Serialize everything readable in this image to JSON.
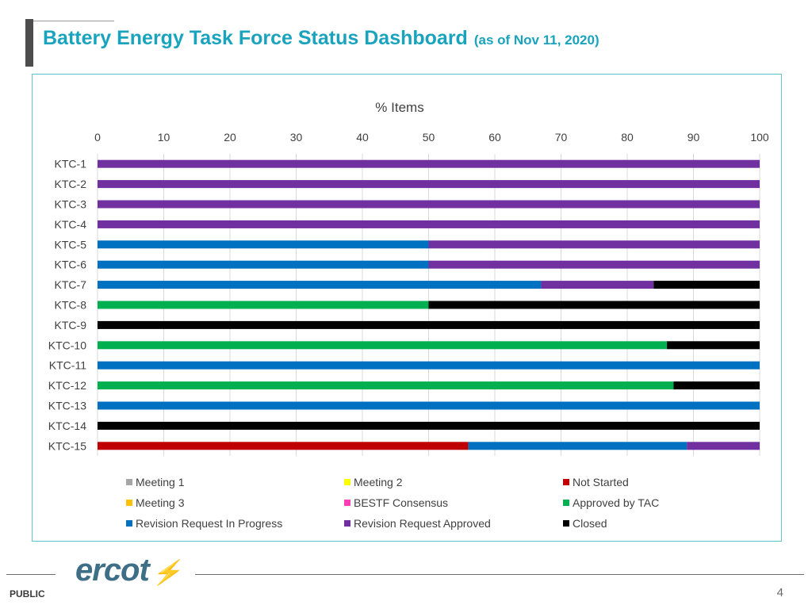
{
  "slide": {
    "title": "Battery Energy Task Force Status Dashboard",
    "subtitle": "(as of Nov 11, 2020)",
    "footer_label": "PUBLIC",
    "page_number": "4",
    "logo_text": "ercot"
  },
  "chart_data": {
    "type": "bar",
    "orientation": "horizontal",
    "stacked": true,
    "title": "% Items",
    "xlim": [
      0,
      100
    ],
    "xticks": [
      "0",
      "10",
      "20",
      "30",
      "40",
      "50",
      "60",
      "70",
      "80",
      "90",
      "100"
    ],
    "categories": [
      "KTC-1",
      "KTC-2",
      "KTC-3",
      "KTC-4",
      "KTC-5",
      "KTC-6",
      "KTC-7",
      "KTC-8",
      "KTC-9",
      "KTC-10",
      "KTC-11",
      "KTC-12",
      "KTC-13",
      "KTC-14",
      "KTC-15"
    ],
    "series": [
      {
        "name": "Meeting 1",
        "color": "#a6a6a6",
        "values": [
          0,
          0,
          0,
          0,
          0,
          0,
          0,
          0,
          0,
          0,
          0,
          0,
          0,
          0,
          0
        ]
      },
      {
        "name": "Meeting 2",
        "color": "#ffff00",
        "values": [
          0,
          0,
          0,
          0,
          0,
          0,
          0,
          0,
          0,
          0,
          0,
          0,
          0,
          0,
          0
        ]
      },
      {
        "name": "Not Started",
        "color": "#c00000",
        "values": [
          0,
          0,
          0,
          0,
          0,
          0,
          0,
          0,
          0,
          0,
          0,
          0,
          0,
          0,
          56
        ]
      },
      {
        "name": "Meeting 3",
        "color": "#ffc000",
        "values": [
          0,
          0,
          0,
          0,
          0,
          0,
          0,
          0,
          0,
          0,
          0,
          0,
          0,
          0,
          0
        ]
      },
      {
        "name": "BESTF Consensus",
        "color": "#ff3fb4",
        "values": [
          0,
          0,
          0,
          0,
          0,
          0,
          0,
          0,
          0,
          0,
          0,
          0,
          0,
          0,
          0
        ]
      },
      {
        "name": "Approved by TAC",
        "color": "#00b050",
        "values": [
          0,
          0,
          0,
          0,
          0,
          0,
          0,
          50,
          0,
          86,
          0,
          87,
          0,
          0,
          0
        ]
      },
      {
        "name": "Revision Request In Progress",
        "color": "#0070c0",
        "values": [
          0,
          0,
          0,
          0,
          50,
          50,
          67,
          0,
          0,
          0,
          100,
          0,
          100,
          0,
          33
        ]
      },
      {
        "name": "Revision Request Approved",
        "color": "#7030a0",
        "values": [
          100,
          100,
          100,
          100,
          50,
          50,
          17,
          0,
          0,
          0,
          0,
          0,
          0,
          0,
          11
        ]
      },
      {
        "name": "Closed",
        "color": "#000000",
        "values": [
          0,
          0,
          0,
          0,
          0,
          0,
          16,
          50,
          100,
          14,
          0,
          13,
          0,
          100,
          0
        ]
      }
    ]
  }
}
